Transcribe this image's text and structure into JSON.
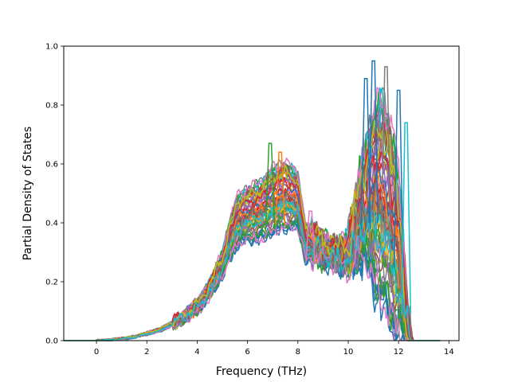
{
  "chart_data": {
    "type": "line",
    "title": "",
    "xlabel": "Frequency (THz)",
    "ylabel": "Partial Density of States",
    "xlim": [
      -1.3,
      14.4
    ],
    "ylim": [
      0,
      1.0
    ],
    "x_ticks": [
      0,
      2,
      4,
      6,
      8,
      10,
      12,
      14
    ],
    "x_tick_labels": [
      "0",
      "2",
      "4",
      "6",
      "8",
      "10",
      "12",
      "14"
    ],
    "y_ticks": [
      0,
      0.2,
      0.4,
      0.6,
      0.8,
      1.0
    ],
    "y_tick_labels": [
      "0.0",
      "0.2",
      "0.4",
      "0.6",
      "0.8",
      "1.0"
    ],
    "grid": false,
    "legend": "none",
    "series_colors": [
      "#1f77b4",
      "#ff7f0e",
      "#2ca02c",
      "#d62728",
      "#9467bd",
      "#8c564b",
      "#e377c2",
      "#7f7f7f",
      "#bcbd22",
      "#17becf"
    ],
    "series_count": 60,
    "envelope": {
      "x": [
        -1.3,
        0,
        0.5,
        1,
        1.5,
        2,
        2.5,
        3,
        3.5,
        4,
        4.5,
        5,
        5.3,
        5.6,
        6,
        6.5,
        7,
        7.5,
        8,
        8.3,
        8.6,
        9,
        9.5,
        10,
        10.3,
        10.6,
        11,
        11.3,
        11.6,
        11.8,
        12,
        12.2,
        12.4,
        12.6,
        13,
        13.7
      ],
      "lower": [
        0,
        0,
        0.002,
        0.005,
        0.01,
        0.02,
        0.03,
        0.05,
        0.075,
        0.1,
        0.15,
        0.22,
        0.28,
        0.32,
        0.34,
        0.34,
        0.36,
        0.38,
        0.38,
        0.27,
        0.28,
        0.28,
        0.26,
        0.24,
        0.26,
        0.28,
        0.2,
        0.12,
        0.07,
        0.04,
        0.02,
        0.01,
        0,
        0,
        0,
        0
      ],
      "upper": [
        0,
        0,
        0.003,
        0.008,
        0.015,
        0.028,
        0.042,
        0.065,
        0.09,
        0.13,
        0.2,
        0.3,
        0.42,
        0.5,
        0.53,
        0.55,
        0.6,
        0.62,
        0.58,
        0.4,
        0.38,
        0.35,
        0.32,
        0.35,
        0.5,
        0.65,
        0.8,
        0.88,
        0.8,
        0.72,
        0.6,
        0.35,
        0.08,
        0,
        0,
        0
      ]
    },
    "peaks": [
      {
        "x": 6.9,
        "y": 0.67,
        "color": "#2ca02c"
      },
      {
        "x": 7.3,
        "y": 0.64,
        "color": "#ff7f0e"
      },
      {
        "x": 8.5,
        "y": 0.44,
        "color": "#e377c2"
      },
      {
        "x": 10.7,
        "y": 0.89,
        "color": "#1f77b4"
      },
      {
        "x": 11.0,
        "y": 0.95,
        "color": "#1f77b4"
      },
      {
        "x": 11.5,
        "y": 0.93,
        "color": "#7f7f7f"
      },
      {
        "x": 12.0,
        "y": 0.85,
        "color": "#1f77b4"
      },
      {
        "x": 12.3,
        "y": 0.74,
        "color": "#17becf"
      }
    ]
  }
}
